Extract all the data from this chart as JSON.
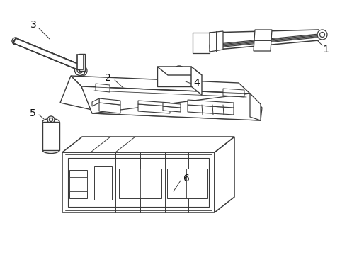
{
  "bg_color": "#ffffff",
  "line_color": "#3a3a3a",
  "lw": 0.9,
  "label_fontsize": 10,
  "label_color": "#111111",
  "figsize": [
    4.9,
    3.6
  ],
  "dpi": 100
}
